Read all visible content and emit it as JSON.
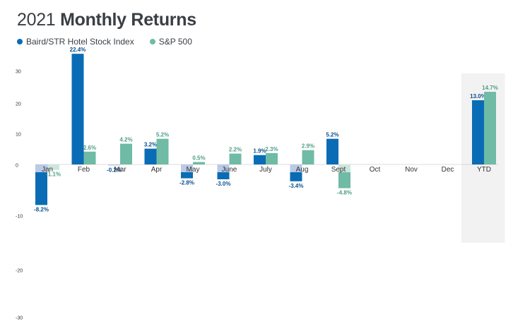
{
  "header": {
    "title_year": "2021",
    "title_rest": "Monthly Returns"
  },
  "legend": {
    "series1_label": "Baird/STR Hotel Stock Index",
    "series2_label": "S&P 500"
  },
  "colors": {
    "series1": "#0a6cb5",
    "series2": "#6fbba5",
    "series1_light": "#b9c9e6",
    "series2_light": "#cde6dc",
    "ytd_band": "#f2f2f2"
  },
  "chart_data": {
    "type": "bar",
    "title": "2021 Monthly Returns",
    "categories": [
      "Jan",
      "Feb",
      "Mar",
      "Apr",
      "May",
      "June",
      "July",
      "Aug",
      "Sept",
      "Oct",
      "Nov",
      "Dec",
      "YTD"
    ],
    "series": [
      {
        "name": "Baird/STR Hotel Stock Index",
        "values": [
          -8.2,
          22.4,
          -0.2,
          3.2,
          -2.8,
          -3.0,
          1.9,
          -3.4,
          5.2,
          null,
          null,
          null,
          13.0
        ],
        "labels": [
          "-8.2%",
          "22.4%",
          "-0.2%",
          "3.2%",
          "-2.8%",
          "-3.0%",
          "1.9%",
          "-3.4%",
          "5.2%",
          "",
          "",
          "",
          "13.0%"
        ]
      },
      {
        "name": "S&P 500",
        "values": [
          -1.1,
          2.6,
          4.2,
          5.2,
          0.5,
          2.2,
          2.3,
          2.9,
          -4.8,
          null,
          null,
          null,
          14.7
        ],
        "labels": [
          "-1.1%",
          "2.6%",
          "4.2%",
          "5.2%",
          "0.5%",
          "2.2%",
          "2.3%",
          "2.9%",
          "-4.8%",
          "",
          "",
          "",
          "14.7%"
        ]
      }
    ],
    "yticks": [
      30,
      20,
      10,
      0,
      -10,
      -20,
      -30
    ],
    "ylim": [
      -30,
      30
    ],
    "grid": false,
    "legend_position": "top-left",
    "highlight_category": "YTD"
  }
}
